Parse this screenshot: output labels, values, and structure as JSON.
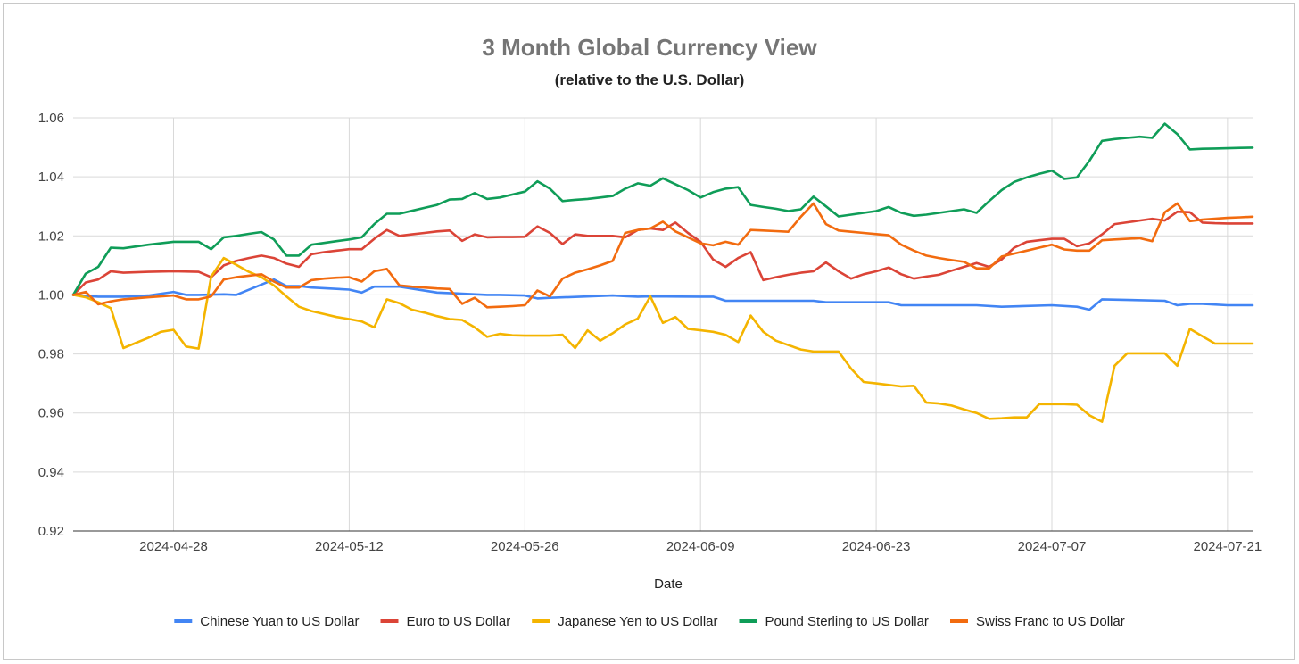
{
  "chart_data": {
    "type": "line",
    "title": "3 Month Global Currency View",
    "subtitle": "(relative to the U.S. Dollar)",
    "xlabel": "Date",
    "ylabel": "",
    "ylim": [
      0.92,
      1.06
    ],
    "yticks": [
      0.92,
      0.94,
      0.96,
      0.98,
      1.0,
      1.02,
      1.04,
      1.06
    ],
    "ytick_labels": [
      "0.92",
      "0.94",
      "0.96",
      "0.98",
      "1.00",
      "1.02",
      "1.04",
      "1.06"
    ],
    "xlim": [
      -8,
      86
    ],
    "xticks": [
      0,
      14,
      28,
      42,
      56,
      70,
      84
    ],
    "xtick_labels": [
      "2024-04-28",
      "2024-05-12",
      "2024-05-26",
      "2024-06-09",
      "2024-06-23",
      "2024-07-07",
      "2024-07-21"
    ],
    "x_unit": "days relative to 2024-04-28",
    "grid": true,
    "legend_position": "bottom",
    "series": [
      {
        "name": "Chinese Yuan to US Dollar",
        "color": "#4285f4",
        "x": [
          -8,
          -6,
          -4,
          -2,
          0,
          1,
          2,
          4,
          5,
          8,
          9,
          10,
          11,
          14,
          15,
          16,
          18,
          21,
          22,
          25,
          26,
          28,
          29,
          30,
          35,
          36,
          37,
          38,
          42,
          43,
          44,
          45,
          47,
          51,
          52,
          53,
          57,
          58,
          60,
          62,
          63,
          64,
          66,
          70,
          72,
          73,
          74,
          79,
          80,
          81,
          82,
          84,
          86
        ],
        "values": [
          1.0,
          0.9994,
          0.9994,
          0.9998,
          1.001,
          1.0,
          1.0,
          1.0002,
          1.0,
          1.0052,
          1.003,
          1.003,
          1.0025,
          1.0018,
          1.0008,
          1.0028,
          1.0028,
          1.0008,
          1.0006,
          1.0,
          1.0,
          0.9998,
          0.9988,
          0.999,
          0.9998,
          0.9996,
          0.9994,
          0.9995,
          0.9994,
          0.9994,
          0.998,
          0.998,
          0.998,
          0.998,
          0.9975,
          0.9975,
          0.9975,
          0.9965,
          0.9965,
          0.9965,
          0.9965,
          0.9965,
          0.996,
          0.9965,
          0.996,
          0.995,
          0.9985,
          0.998,
          0.9965,
          0.997,
          0.997,
          0.9965,
          0.9965
        ]
      },
      {
        "name": "Euro to US Dollar",
        "color": "#db4437",
        "x": [
          -8,
          -7,
          -6,
          -5,
          -4,
          -2,
          0,
          2,
          3,
          4,
          5,
          6,
          7,
          8,
          9,
          10,
          11,
          12,
          13,
          14,
          15,
          16,
          17,
          18,
          19,
          20,
          21,
          22,
          23,
          24,
          25,
          26,
          27,
          28,
          29,
          30,
          31,
          32,
          33,
          34,
          35,
          36,
          37,
          38,
          39,
          40,
          41,
          42,
          43,
          44,
          45,
          46,
          47,
          48,
          49,
          50,
          51,
          52,
          53,
          54,
          55,
          56,
          57,
          58,
          59,
          60,
          61,
          62,
          63,
          64,
          65,
          66,
          67,
          68,
          69,
          70,
          71,
          72,
          73,
          74,
          75,
          76,
          77,
          78,
          79,
          80,
          81,
          82,
          83,
          84,
          85,
          86
        ],
        "values": [
          1.0,
          1.0042,
          1.0052,
          1.008,
          1.0075,
          1.0078,
          1.008,
          1.0078,
          1.006,
          1.01,
          1.0115,
          1.0125,
          1.0133,
          1.0125,
          1.0106,
          1.0095,
          1.0138,
          1.0145,
          1.015,
          1.0155,
          1.0155,
          1.019,
          1.022,
          1.02,
          1.0205,
          1.021,
          1.0215,
          1.0218,
          1.0183,
          1.0205,
          1.0195,
          1.0196,
          1.0196,
          1.0197,
          1.0232,
          1.021,
          1.0172,
          1.0205,
          1.02,
          1.02,
          1.02,
          1.0195,
          1.022,
          1.0225,
          1.022,
          1.0245,
          1.021,
          1.018,
          1.012,
          1.0095,
          1.0125,
          1.0145,
          1.005,
          1.006,
          1.0068,
          1.0075,
          1.008,
          1.011,
          1.008,
          1.0055,
          1.007,
          1.008,
          1.0093,
          1.007,
          1.0055,
          1.0062,
          1.0068,
          1.0082,
          1.0095,
          1.0108,
          1.0095,
          1.012,
          1.016,
          1.018,
          1.0185,
          1.019,
          1.019,
          1.0165,
          1.0175,
          1.0205,
          1.024,
          1.0246,
          1.0252,
          1.0258,
          1.0252,
          1.0282,
          1.028,
          1.0245,
          1.0243,
          1.0242,
          1.0242,
          1.0242
        ]
      },
      {
        "name": "Japanese Yen to US Dollar",
        "color": "#f4b400",
        "x": [
          -8,
          -7,
          -6,
          -5,
          -4,
          -2,
          -1,
          0,
          1,
          2,
          3,
          4,
          5,
          6,
          7,
          8,
          9,
          10,
          11,
          12,
          13,
          14,
          15,
          16,
          17,
          18,
          19,
          20,
          21,
          22,
          23,
          24,
          25,
          26,
          27,
          28,
          29,
          30,
          31,
          32,
          33,
          34,
          35,
          36,
          37,
          38,
          39,
          40,
          41,
          42,
          43,
          44,
          45,
          46,
          47,
          48,
          49,
          50,
          51,
          52,
          53,
          54,
          55,
          56,
          57,
          58,
          59,
          60,
          61,
          62,
          63,
          64,
          65,
          66,
          67,
          68,
          69,
          70,
          71,
          72,
          73,
          74,
          75,
          76,
          77,
          78,
          79,
          80,
          81,
          82,
          83,
          84,
          85,
          86
        ],
        "values": [
          1.0,
          0.9992,
          0.9975,
          0.9955,
          0.982,
          0.9855,
          0.9875,
          0.9882,
          0.9825,
          0.9818,
          1.0062,
          1.0125,
          1.0102,
          1.0078,
          1.006,
          1.0032,
          0.9995,
          0.996,
          0.9945,
          0.9935,
          0.9925,
          0.9918,
          0.991,
          0.989,
          0.9985,
          0.9972,
          0.995,
          0.994,
          0.9928,
          0.9918,
          0.9915,
          0.989,
          0.9858,
          0.9868,
          0.9863,
          0.9862,
          0.9862,
          0.9862,
          0.9865,
          0.982,
          0.988,
          0.9845,
          0.987,
          0.99,
          0.992,
          0.9995,
          0.9905,
          0.9925,
          0.9885,
          0.988,
          0.9875,
          0.9865,
          0.984,
          0.993,
          0.9875,
          0.9845,
          0.983,
          0.9815,
          0.9808,
          0.9808,
          0.9808,
          0.975,
          0.9705,
          0.97,
          0.9695,
          0.969,
          0.9692,
          0.9635,
          0.9632,
          0.9625,
          0.9612,
          0.96,
          0.958,
          0.9582,
          0.9585,
          0.9585,
          0.963,
          0.963,
          0.963,
          0.9628,
          0.9592,
          0.957,
          0.976,
          0.9802,
          0.9802,
          0.9802,
          0.9802,
          0.976,
          0.9885,
          0.986,
          0.9835,
          0.9835,
          0.9835,
          0.9835
        ]
      },
      {
        "name": "Pound Sterling to US Dollar",
        "color": "#0f9d58",
        "x": [
          -8,
          -7,
          -6,
          -5,
          -4,
          -2,
          0,
          2,
          3,
          4,
          5,
          6,
          7,
          8,
          9,
          10,
          11,
          12,
          13,
          14,
          15,
          16,
          17,
          18,
          19,
          20,
          21,
          22,
          23,
          24,
          25,
          26,
          27,
          28,
          29,
          30,
          31,
          32,
          33,
          34,
          35,
          36,
          37,
          38,
          39,
          40,
          41,
          42,
          43,
          44,
          45,
          46,
          47,
          48,
          49,
          50,
          51,
          52,
          53,
          54,
          55,
          56,
          57,
          58,
          59,
          60,
          61,
          62,
          63,
          64,
          65,
          66,
          67,
          68,
          69,
          70,
          71,
          72,
          73,
          74,
          75,
          76,
          77,
          78,
          79,
          80,
          81,
          82,
          83,
          84,
          85,
          86
        ],
        "values": [
          1.0,
          1.0072,
          1.0095,
          1.016,
          1.0158,
          1.017,
          1.018,
          1.018,
          1.0155,
          1.0195,
          1.02,
          1.0207,
          1.0213,
          1.0188,
          1.0133,
          1.0133,
          1.017,
          1.0176,
          1.0182,
          1.0188,
          1.0195,
          1.024,
          1.0275,
          1.0275,
          1.0285,
          1.0295,
          1.0305,
          1.0323,
          1.0325,
          1.0345,
          1.0325,
          1.033,
          1.034,
          1.035,
          1.0385,
          1.036,
          1.0318,
          1.0322,
          1.0325,
          1.033,
          1.0335,
          1.036,
          1.0378,
          1.037,
          1.0395,
          1.0375,
          1.0355,
          1.033,
          1.0348,
          1.036,
          1.0365,
          1.0305,
          1.0298,
          1.0292,
          1.0284,
          1.029,
          1.0333,
          1.03,
          1.0266,
          1.0272,
          1.0278,
          1.0284,
          1.0298,
          1.0278,
          1.0268,
          1.0272,
          1.0278,
          1.0284,
          1.029,
          1.0278,
          1.0318,
          1.0355,
          1.0383,
          1.0398,
          1.041,
          1.0421,
          1.0393,
          1.0398,
          1.0455,
          1.0522,
          1.0528,
          1.0532,
          1.0536,
          1.0532,
          1.058,
          1.0545,
          1.0493,
          1.0495,
          1.0496,
          1.0497,
          1.0498,
          1.0499
        ]
      },
      {
        "name": "Swiss Franc to US Dollar",
        "color": "#f26b0f",
        "x": [
          -8,
          -7,
          -6,
          -5,
          -4,
          -2,
          0,
          1,
          2,
          3,
          4,
          5,
          6,
          7,
          8,
          9,
          10,
          11,
          12,
          13,
          14,
          15,
          16,
          17,
          18,
          19,
          20,
          21,
          22,
          23,
          24,
          25,
          26,
          27,
          28,
          29,
          30,
          31,
          32,
          33,
          34,
          35,
          36,
          37,
          38,
          39,
          40,
          41,
          42,
          43,
          44,
          45,
          46,
          47,
          48,
          49,
          50,
          51,
          52,
          53,
          54,
          55,
          56,
          57,
          58,
          59,
          60,
          61,
          62,
          63,
          64,
          65,
          66,
          67,
          68,
          69,
          70,
          71,
          72,
          73,
          74,
          75,
          76,
          77,
          78,
          79,
          80,
          81,
          82,
          83,
          84,
          85,
          86
        ],
        "values": [
          1.0,
          1.001,
          0.9968,
          0.9978,
          0.9985,
          0.9992,
          0.9998,
          0.9985,
          0.9985,
          0.9995,
          1.0052,
          1.006,
          1.0065,
          1.007,
          1.0045,
          1.0025,
          1.0025,
          1.005,
          1.0055,
          1.0058,
          1.006,
          1.0045,
          1.008,
          1.0088,
          1.0032,
          1.0028,
          1.0025,
          1.0022,
          1.002,
          0.997,
          0.999,
          0.9958,
          0.996,
          0.9962,
          0.9965,
          1.0015,
          0.9995,
          1.0055,
          1.0075,
          1.0087,
          1.01,
          1.0115,
          1.021,
          1.022,
          1.0225,
          1.0248,
          1.0215,
          1.0195,
          1.0175,
          1.0168,
          1.018,
          1.017,
          1.022,
          1.0218,
          1.0216,
          1.0214,
          1.0265,
          1.031,
          1.024,
          1.0218,
          1.0214,
          1.021,
          1.0206,
          1.0202,
          1.017,
          1.015,
          1.0133,
          1.0125,
          1.0118,
          1.0112,
          1.009,
          1.009,
          1.013,
          1.014,
          1.015,
          1.016,
          1.017,
          1.0154,
          1.015,
          1.015,
          1.0185,
          1.0188,
          1.019,
          1.0192,
          1.0182,
          1.028,
          1.031,
          1.025,
          1.0255,
          1.0258,
          1.0261,
          1.0263,
          1.0265
        ]
      }
    ]
  }
}
